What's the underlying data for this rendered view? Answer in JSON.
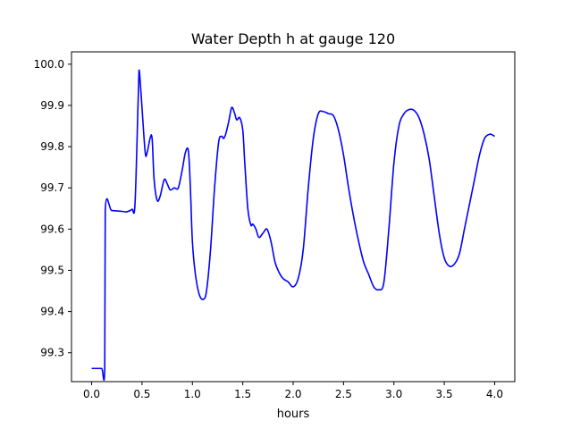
{
  "chart_data": {
    "type": "line",
    "title": "Water Depth h at gauge 120",
    "xlabel": "hours",
    "ylabel": "",
    "xlim": [
      -0.2,
      4.2
    ],
    "ylim": [
      99.23,
      100.03
    ],
    "xticks": [
      0.0,
      0.5,
      1.0,
      1.5,
      2.0,
      2.5,
      3.0,
      3.5,
      4.0
    ],
    "xtick_labels": [
      "0.0",
      "0.5",
      "1.0",
      "1.5",
      "2.0",
      "2.5",
      "3.0",
      "3.5",
      "4.0"
    ],
    "yticks": [
      99.3,
      99.4,
      99.5,
      99.6,
      99.7,
      99.8,
      99.9,
      100.0
    ],
    "ytick_labels": [
      "99.3",
      "99.4",
      "99.5",
      "99.6",
      "99.7",
      "99.8",
      "99.9",
      "100.0"
    ],
    "grid": false,
    "series": [
      {
        "color": "#0000ff",
        "x": [
          0.0,
          0.05,
          0.1,
          0.13,
          0.135,
          0.2,
          0.3,
          0.35,
          0.4,
          0.43,
          0.46,
          0.47,
          0.49,
          0.53,
          0.55,
          0.58,
          0.6,
          0.62,
          0.65,
          0.68,
          0.72,
          0.75,
          0.78,
          0.82,
          0.86,
          0.9,
          0.93,
          0.96,
          0.98,
          1.0,
          1.03,
          1.07,
          1.11,
          1.14,
          1.18,
          1.22,
          1.26,
          1.29,
          1.31,
          1.33,
          1.36,
          1.39,
          1.42,
          1.44,
          1.47,
          1.5,
          1.52,
          1.55,
          1.58,
          1.6,
          1.63,
          1.66,
          1.7,
          1.74,
          1.78,
          1.82,
          1.86,
          1.9,
          1.95,
          2.0,
          2.05,
          2.1,
          2.15,
          2.2,
          2.25,
          2.3,
          2.35,
          2.4,
          2.45,
          2.5,
          2.55,
          2.6,
          2.65,
          2.7,
          2.75,
          2.8,
          2.85,
          2.9,
          2.95,
          3.0,
          3.05,
          3.1,
          3.15,
          3.2,
          3.25,
          3.3,
          3.35,
          3.4,
          3.45,
          3.5,
          3.55,
          3.6,
          3.65,
          3.7,
          3.75,
          3.8,
          3.85,
          3.9,
          3.95,
          3.98,
          4.0
        ],
        "y": [
          99.262,
          99.262,
          99.262,
          99.262,
          99.645,
          99.645,
          99.643,
          99.642,
          99.648,
          99.66,
          99.9,
          99.985,
          99.93,
          99.79,
          99.785,
          99.82,
          99.82,
          99.72,
          99.67,
          99.68,
          99.72,
          99.71,
          99.695,
          99.7,
          99.7,
          99.745,
          99.785,
          99.79,
          99.7,
          99.57,
          99.49,
          99.44,
          99.43,
          99.45,
          99.55,
          99.7,
          99.81,
          99.825,
          99.82,
          99.83,
          99.86,
          99.895,
          99.88,
          99.865,
          99.87,
          99.84,
          99.76,
          99.65,
          99.61,
          99.612,
          99.6,
          99.58,
          99.59,
          99.6,
          99.57,
          99.52,
          99.495,
          99.48,
          99.472,
          99.46,
          99.48,
          99.55,
          99.7,
          99.82,
          99.88,
          99.885,
          99.88,
          99.875,
          99.84,
          99.78,
          99.7,
          99.63,
          99.57,
          99.52,
          99.49,
          99.46,
          99.453,
          99.47,
          99.6,
          99.76,
          99.85,
          99.88,
          99.89,
          99.888,
          99.87,
          99.83,
          99.77,
          99.68,
          99.59,
          99.53,
          99.51,
          99.515,
          99.54,
          99.6,
          99.66,
          99.72,
          99.78,
          99.82,
          99.83,
          99.828,
          99.825
        ]
      }
    ]
  }
}
